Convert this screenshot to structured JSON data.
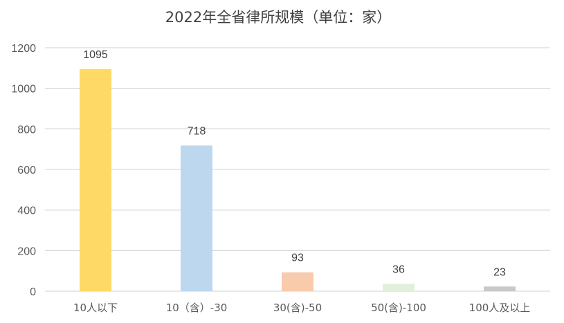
{
  "chart_data": {
    "type": "bar",
    "title": "2022年全省律所规模（单位：家）",
    "categories": [
      "10人以下",
      "10（含）-30",
      "30(含)-50",
      "50(含)-100",
      "100人及以上"
    ],
    "values": [
      1095,
      718,
      93,
      36,
      23
    ],
    "colors": [
      "#FFD966",
      "#BDD7EE",
      "#F8CBAD",
      "#E2EFDA",
      "#C9C9C9"
    ],
    "xlabel": "",
    "ylabel": "",
    "ylim": [
      0,
      1200
    ],
    "yticks": [
      0,
      200,
      400,
      600,
      800,
      1000,
      1200
    ],
    "grid": true,
    "data_labels": true,
    "legend": "none"
  }
}
